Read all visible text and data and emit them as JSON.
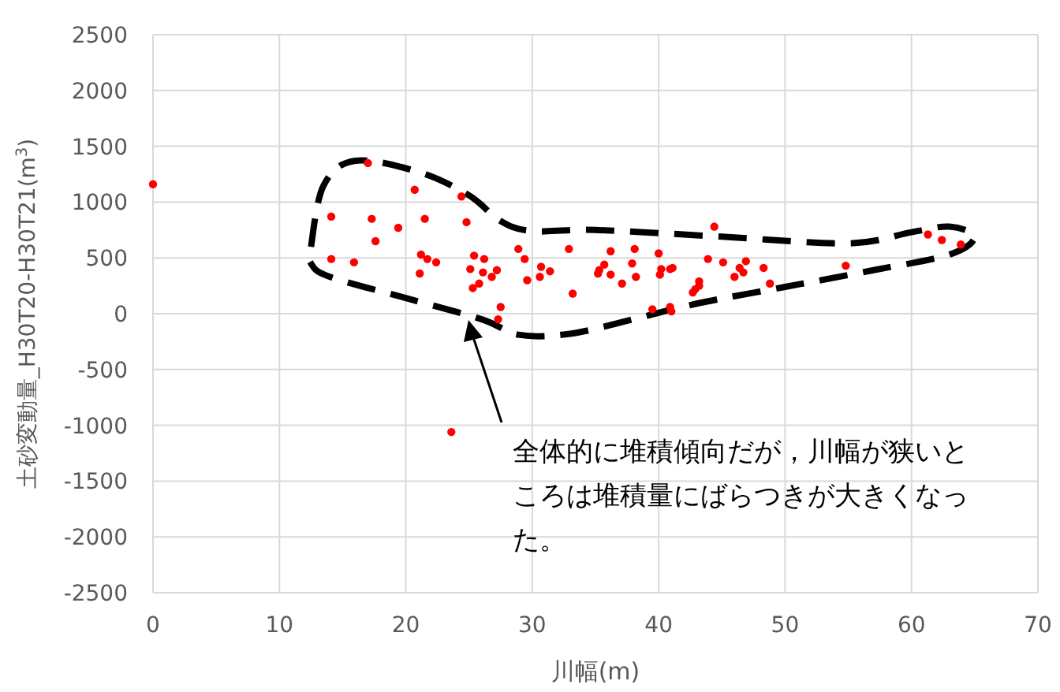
{
  "chart_data": {
    "type": "scatter",
    "xlabel": "川幅(m)",
    "ylabel": "土砂変動量_H30T20-H30T21(m$^{3}$)",
    "x": [
      0,
      17.0,
      14.1,
      17.3,
      19.4,
      21.5,
      20.7,
      24.4,
      24.8,
      17.6,
      14.1,
      15.9,
      21.2,
      21.7,
      22.4,
      21.1,
      25.4,
      26.2,
      25.1,
      26.1,
      27.2,
      26.8,
      25.8,
      25.3,
      28.9,
      27.5,
      27.3,
      23.6,
      29.4,
      29.6,
      30.7,
      30.6,
      31.4,
      32.9,
      33.2,
      35.2,
      35.3,
      35.7,
      36.2,
      36.2,
      37.1,
      37.9,
      38.1,
      38.2,
      40.0,
      40.2,
      40.1,
      40.9,
      41.1,
      39.5,
      40.9,
      41.0,
      42.7,
      42.9,
      43.2,
      43.2,
      43.9,
      44.4,
      45.1,
      46.0,
      46.4,
      46.7,
      46.9,
      48.3,
      48.8,
      54.8,
      61.3,
      62.4,
      63.9
    ],
    "values": [
      1160,
      1350,
      870,
      850,
      770,
      850,
      1110,
      1050,
      820,
      650,
      490,
      460,
      530,
      490,
      460,
      360,
      520,
      490,
      400,
      370,
      390,
      330,
      270,
      230,
      580,
      60,
      -50,
      -1060,
      490,
      300,
      420,
      330,
      380,
      580,
      180,
      360,
      390,
      440,
      560,
      350,
      270,
      450,
      580,
      330,
      540,
      400,
      350,
      400,
      410,
      40,
      60,
      20,
      190,
      220,
      250,
      290,
      490,
      780,
      460,
      330,
      410,
      370,
      470,
      410,
      270,
      430,
      710,
      660,
      620
    ],
    "color": "#ff0000",
    "marker": "circle",
    "grid": true,
    "xlim": [
      0,
      70
    ],
    "xticks": [
      0,
      10,
      20,
      30,
      40,
      50,
      60,
      70
    ],
    "ylim": [
      -2500,
      2500
    ],
    "yticks": [
      -2500,
      -2000,
      -1500,
      -1000,
      -500,
      0,
      500,
      1000,
      1500,
      2000,
      2500
    ],
    "annotations": [
      "全体的に堆積傾向だが，川幅が狭いところは堆積量にばらつきが大きくなった。"
    ]
  }
}
